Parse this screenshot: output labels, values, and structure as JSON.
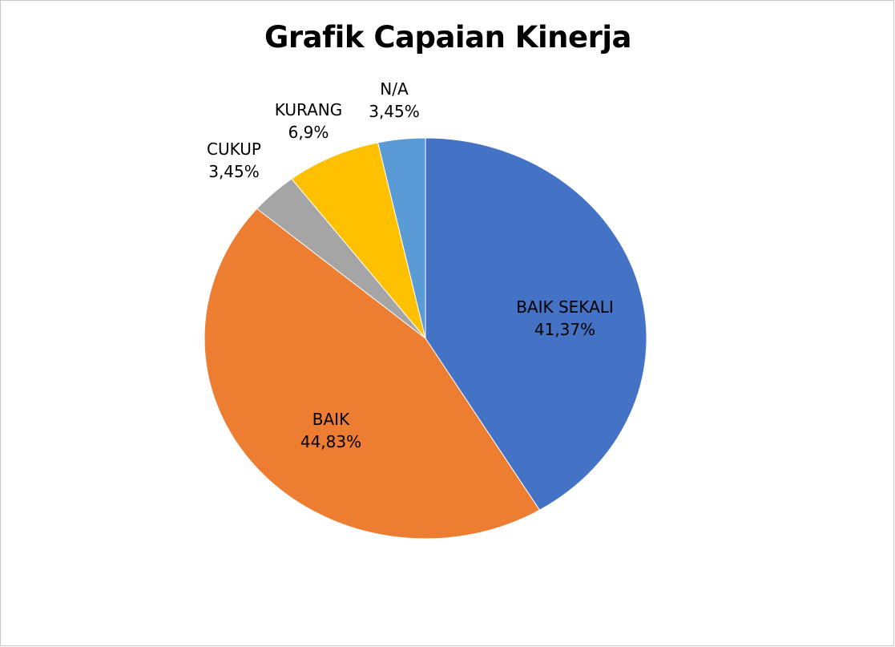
{
  "chart_data": {
    "type": "pie",
    "title": "Grafik Capaian Kinerja",
    "slices": [
      {
        "label": "BAIK SEKALI",
        "value": 41.37,
        "value_label": "41,37%",
        "color": "#4472C4"
      },
      {
        "label": "BAIK",
        "value": 44.83,
        "value_label": "44,83%",
        "color": "#ED7D31"
      },
      {
        "label": "CUKUP",
        "value": 3.45,
        "value_label": "3,45%",
        "color": "#A5A5A5"
      },
      {
        "label": "KURANG",
        "value": 6.9,
        "value_label": "6,9%",
        "color": "#FFC000"
      },
      {
        "label": "N/A",
        "value": 3.45,
        "value_label": "3,45%",
        "color": "#5B9BD5"
      }
    ],
    "start_angle_deg": 0,
    "direction": "clockwise",
    "legend": "none",
    "label_style": "category name and percentage"
  }
}
